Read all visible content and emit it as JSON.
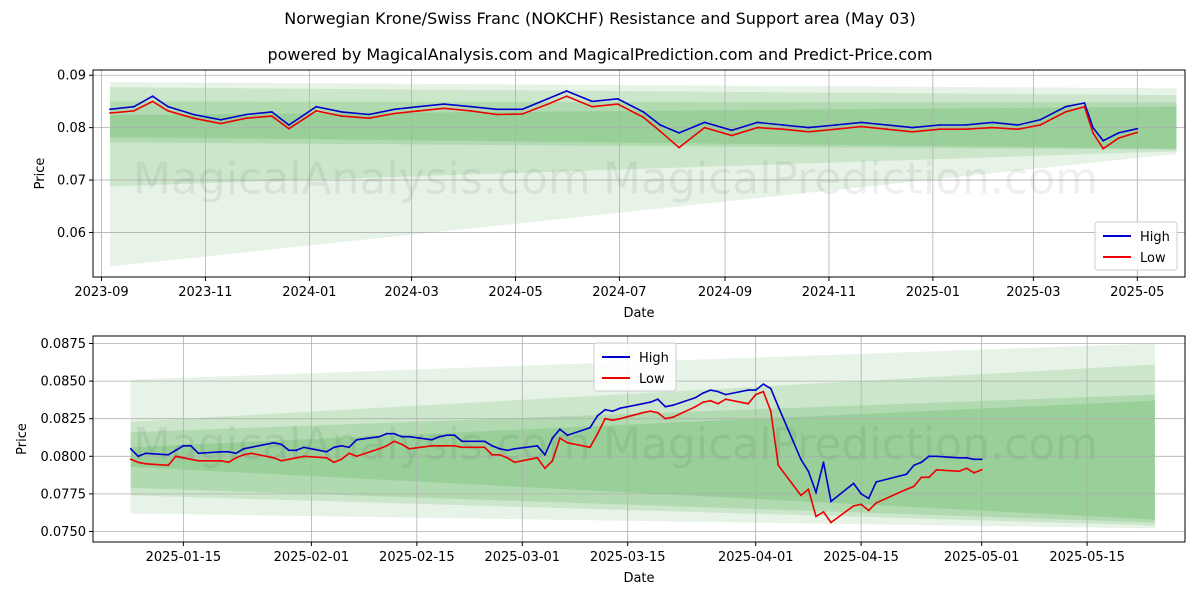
{
  "title": "Norwegian Krone/Swiss Franc (NOKCHF) Resistance and Support area (May 03)",
  "subtitle": "powered by MagicalAnalysis.com and MagicalPrediction.com and Predict-Price.com",
  "watermarks": [
    "MagicalAnalysis.com",
    "MagicalPrediction.com"
  ],
  "colors": {
    "high": "#0000cc",
    "low": "#ee0000",
    "band": "#2e9e2e"
  },
  "chart_data": [
    {
      "type": "line",
      "xlabel": "Date",
      "ylabel": "Price",
      "xlim": [
        "2023-08-27",
        "2025-05-29"
      ],
      "ylim": [
        0.0515,
        0.091
      ],
      "x_ticks": [
        "2023-09",
        "2023-11",
        "2024-01",
        "2024-03",
        "2024-05",
        "2024-07",
        "2024-09",
        "2024-11",
        "2025-01",
        "2025-03",
        "2025-05"
      ],
      "x_tick_dates": [
        "2023-09-01",
        "2023-11-01",
        "2024-01-01",
        "2024-03-01",
        "2024-05-01",
        "2024-07-01",
        "2024-09-01",
        "2024-11-01",
        "2025-01-01",
        "2025-03-01",
        "2025-05-01"
      ],
      "y_ticks": [
        "0.06",
        "0.07",
        "0.08",
        "0.09"
      ],
      "y_tick_values": [
        0.06,
        0.07,
        0.08,
        0.09
      ],
      "legend": {
        "position": "lower-right",
        "entries": [
          "High",
          "Low"
        ]
      },
      "series": [
        {
          "name": "High",
          "x": [
            "2023-09-06",
            "2023-09-20",
            "2023-10-01",
            "2023-10-10",
            "2023-10-25",
            "2023-11-10",
            "2023-11-25",
            "2023-12-10",
            "2023-12-20",
            "2024-01-05",
            "2024-01-20",
            "2024-02-05",
            "2024-02-20",
            "2024-03-05",
            "2024-03-20",
            "2024-04-05",
            "2024-04-20",
            "2024-05-05",
            "2024-05-20",
            "2024-05-31",
            "2024-06-15",
            "2024-06-30",
            "2024-07-15",
            "2024-07-25",
            "2024-08-05",
            "2024-08-20",
            "2024-09-05",
            "2024-09-20",
            "2024-10-05",
            "2024-10-20",
            "2024-11-05",
            "2024-11-20",
            "2024-12-05",
            "2024-12-20",
            "2025-01-05",
            "2025-01-20",
            "2025-02-05",
            "2025-02-20",
            "2025-03-05",
            "2025-03-20",
            "2025-03-31",
            "2025-04-05",
            "2025-04-11",
            "2025-04-20",
            "2025-05-01"
          ],
          "values": [
            0.0835,
            0.084,
            0.086,
            0.084,
            0.0825,
            0.0815,
            0.0825,
            0.083,
            0.0805,
            0.084,
            0.083,
            0.0825,
            0.0835,
            0.084,
            0.0845,
            0.084,
            0.0835,
            0.0835,
            0.0855,
            0.087,
            0.085,
            0.0855,
            0.083,
            0.0805,
            0.079,
            0.081,
            0.0795,
            0.081,
            0.0805,
            0.08,
            0.0805,
            0.081,
            0.0805,
            0.08,
            0.0805,
            0.0805,
            0.081,
            0.0805,
            0.0815,
            0.084,
            0.0847,
            0.08,
            0.0775,
            0.079,
            0.0798
          ]
        },
        {
          "name": "Low",
          "x": [
            "2023-09-06",
            "2023-09-20",
            "2023-10-01",
            "2023-10-10",
            "2023-10-25",
            "2023-11-10",
            "2023-11-25",
            "2023-12-10",
            "2023-12-20",
            "2024-01-05",
            "2024-01-20",
            "2024-02-05",
            "2024-02-20",
            "2024-03-05",
            "2024-03-20",
            "2024-04-05",
            "2024-04-20",
            "2024-05-05",
            "2024-05-20",
            "2024-05-31",
            "2024-06-15",
            "2024-06-30",
            "2024-07-15",
            "2024-07-25",
            "2024-08-05",
            "2024-08-20",
            "2024-09-05",
            "2024-09-20",
            "2024-10-05",
            "2024-10-20",
            "2024-11-05",
            "2024-11-20",
            "2024-12-05",
            "2024-12-20",
            "2025-01-05",
            "2025-01-20",
            "2025-02-05",
            "2025-02-20",
            "2025-03-05",
            "2025-03-20",
            "2025-03-31",
            "2025-04-05",
            "2025-04-11",
            "2025-04-20",
            "2025-05-01"
          ],
          "values": [
            0.0828,
            0.0832,
            0.085,
            0.0832,
            0.0818,
            0.0808,
            0.0818,
            0.0822,
            0.0798,
            0.0832,
            0.0822,
            0.0818,
            0.0827,
            0.0832,
            0.0837,
            0.0832,
            0.0825,
            0.0826,
            0.0845,
            0.086,
            0.084,
            0.0845,
            0.082,
            0.0793,
            0.0762,
            0.08,
            0.0785,
            0.08,
            0.0797,
            0.0792,
            0.0797,
            0.0802,
            0.0797,
            0.0792,
            0.0797,
            0.0797,
            0.08,
            0.0797,
            0.0805,
            0.083,
            0.084,
            0.079,
            0.076,
            0.078,
            0.0791
          ]
        }
      ],
      "bands": [
        {
          "x_start": "2023-09-06",
          "x_end": "2025-05-24",
          "upper_start": 0.0887,
          "upper_end": 0.0875,
          "lower_start": 0.0535,
          "lower_end": 0.075
        },
        {
          "x_start": "2023-09-06",
          "x_end": "2025-05-24",
          "upper_start": 0.0877,
          "upper_end": 0.0862,
          "lower_start": 0.0688,
          "lower_end": 0.0755
        },
        {
          "x_start": "2023-09-06",
          "x_end": "2025-05-24",
          "upper_start": 0.085,
          "upper_end": 0.0848,
          "lower_start": 0.0772,
          "lower_end": 0.0758
        },
        {
          "x_start": "2023-09-06",
          "x_end": "2025-05-24",
          "upper_start": 0.0824,
          "upper_end": 0.084,
          "lower_start": 0.0782,
          "lower_end": 0.076
        }
      ]
    },
    {
      "type": "line",
      "xlabel": "Date",
      "ylabel": "Price",
      "xlim": [
        "2025-01-03",
        "2025-05-28"
      ],
      "ylim": [
        0.0743,
        0.088
      ],
      "x_ticks": [
        "2025-01-15",
        "2025-02-01",
        "2025-02-15",
        "2025-03-01",
        "2025-03-15",
        "2025-04-01",
        "2025-04-15",
        "2025-05-01",
        "2025-05-15"
      ],
      "x_tick_dates": [
        "2025-01-15",
        "2025-02-01",
        "2025-02-15",
        "2025-03-01",
        "2025-03-15",
        "2025-04-01",
        "2025-04-15",
        "2025-05-01",
        "2025-05-15"
      ],
      "y_ticks": [
        "0.0750",
        "0.0775",
        "0.0800",
        "0.0825",
        "0.0850",
        "0.0875"
      ],
      "y_tick_values": [
        0.075,
        0.0775,
        0.08,
        0.0825,
        0.085,
        0.0875
      ],
      "legend": {
        "position": "top-center",
        "entries": [
          "High",
          "Low"
        ]
      },
      "series": [
        {
          "name": "High",
          "x": [
            "2025-01-08",
            "2025-01-09",
            "2025-01-10",
            "2025-01-13",
            "2025-01-14",
            "2025-01-15",
            "2025-01-16",
            "2025-01-17",
            "2025-01-20",
            "2025-01-21",
            "2025-01-22",
            "2025-01-23",
            "2025-01-24",
            "2025-01-27",
            "2025-01-28",
            "2025-01-29",
            "2025-01-30",
            "2025-01-31",
            "2025-02-03",
            "2025-02-04",
            "2025-02-05",
            "2025-02-06",
            "2025-02-07",
            "2025-02-10",
            "2025-02-11",
            "2025-02-12",
            "2025-02-13",
            "2025-02-14",
            "2025-02-17",
            "2025-02-18",
            "2025-02-19",
            "2025-02-20",
            "2025-02-21",
            "2025-02-24",
            "2025-02-25",
            "2025-02-26",
            "2025-02-27",
            "2025-02-28",
            "2025-03-03",
            "2025-03-04",
            "2025-03-05",
            "2025-03-06",
            "2025-03-07",
            "2025-03-10",
            "2025-03-11",
            "2025-03-12",
            "2025-03-13",
            "2025-03-14",
            "2025-03-17",
            "2025-03-18",
            "2025-03-19",
            "2025-03-20",
            "2025-03-21",
            "2025-03-24",
            "2025-03-25",
            "2025-03-26",
            "2025-03-27",
            "2025-03-28",
            "2025-03-31",
            "2025-04-01",
            "2025-04-02",
            "2025-04-03",
            "2025-04-04",
            "2025-04-07",
            "2025-04-08",
            "2025-04-09",
            "2025-04-10",
            "2025-04-11",
            "2025-04-14",
            "2025-04-15",
            "2025-04-16",
            "2025-04-17",
            "2025-04-21",
            "2025-04-22",
            "2025-04-23",
            "2025-04-24",
            "2025-04-25",
            "2025-04-28",
            "2025-04-29",
            "2025-04-30",
            "2025-05-01"
          ],
          "values": [
            0.0805,
            0.08,
            0.0802,
            0.0801,
            0.0804,
            0.0807,
            0.0807,
            0.0802,
            0.0803,
            0.0803,
            0.0802,
            0.0805,
            0.0806,
            0.0809,
            0.0808,
            0.0804,
            0.0804,
            0.0806,
            0.0803,
            0.0806,
            0.0807,
            0.0806,
            0.0811,
            0.0813,
            0.0815,
            0.0815,
            0.0813,
            0.0813,
            0.0811,
            0.0813,
            0.0814,
            0.0814,
            0.081,
            0.081,
            0.0807,
            0.0805,
            0.0804,
            0.0805,
            0.0807,
            0.0801,
            0.0812,
            0.0818,
            0.0814,
            0.0819,
            0.0827,
            0.0831,
            0.083,
            0.0832,
            0.0835,
            0.0836,
            0.0838,
            0.0833,
            0.0834,
            0.0839,
            0.0842,
            0.0844,
            0.0843,
            0.0841,
            0.0844,
            0.0844,
            0.0848,
            0.0845,
            0.0833,
            0.0798,
            0.079,
            0.0776,
            0.0796,
            0.077,
            0.0782,
            0.0775,
            0.0772,
            0.0783,
            0.0788,
            0.0794,
            0.0796,
            0.08,
            0.08,
            0.0799,
            0.0799,
            0.0798,
            0.0798
          ]
        },
        {
          "name": "Low",
          "x": [
            "2025-01-08",
            "2025-01-09",
            "2025-01-10",
            "2025-01-13",
            "2025-01-14",
            "2025-01-15",
            "2025-01-16",
            "2025-01-17",
            "2025-01-20",
            "2025-01-21",
            "2025-01-22",
            "2025-01-23",
            "2025-01-24",
            "2025-01-27",
            "2025-01-28",
            "2025-01-29",
            "2025-01-30",
            "2025-01-31",
            "2025-02-03",
            "2025-02-04",
            "2025-02-05",
            "2025-02-06",
            "2025-02-07",
            "2025-02-10",
            "2025-02-11",
            "2025-02-12",
            "2025-02-13",
            "2025-02-14",
            "2025-02-17",
            "2025-02-18",
            "2025-02-19",
            "2025-02-20",
            "2025-02-21",
            "2025-02-24",
            "2025-02-25",
            "2025-02-26",
            "2025-02-27",
            "2025-02-28",
            "2025-03-03",
            "2025-03-04",
            "2025-03-05",
            "2025-03-06",
            "2025-03-07",
            "2025-03-10",
            "2025-03-11",
            "2025-03-12",
            "2025-03-13",
            "2025-03-14",
            "2025-03-17",
            "2025-03-18",
            "2025-03-19",
            "2025-03-20",
            "2025-03-21",
            "2025-03-24",
            "2025-03-25",
            "2025-03-26",
            "2025-03-27",
            "2025-03-28",
            "2025-03-31",
            "2025-04-01",
            "2025-04-02",
            "2025-04-03",
            "2025-04-04",
            "2025-04-07",
            "2025-04-08",
            "2025-04-09",
            "2025-04-10",
            "2025-04-11",
            "2025-04-14",
            "2025-04-15",
            "2025-04-16",
            "2025-04-17",
            "2025-04-21",
            "2025-04-22",
            "2025-04-23",
            "2025-04-24",
            "2025-04-25",
            "2025-04-28",
            "2025-04-29",
            "2025-04-30",
            "2025-05-01"
          ],
          "values": [
            0.0798,
            0.0796,
            0.0795,
            0.0794,
            0.08,
            0.0799,
            0.0798,
            0.0797,
            0.0797,
            0.0796,
            0.0799,
            0.0801,
            0.0802,
            0.0799,
            0.0797,
            0.0798,
            0.0799,
            0.08,
            0.0799,
            0.0796,
            0.0798,
            0.0802,
            0.08,
            0.0805,
            0.0807,
            0.081,
            0.0808,
            0.0805,
            0.0807,
            0.0807,
            0.0807,
            0.0807,
            0.0806,
            0.0806,
            0.0801,
            0.0801,
            0.0799,
            0.0796,
            0.0799,
            0.0792,
            0.0797,
            0.0812,
            0.0809,
            0.0806,
            0.0815,
            0.0825,
            0.0824,
            0.0825,
            0.0829,
            0.083,
            0.0829,
            0.0825,
            0.0826,
            0.0833,
            0.0836,
            0.0837,
            0.0835,
            0.0838,
            0.0835,
            0.0841,
            0.0843,
            0.083,
            0.0794,
            0.0774,
            0.0778,
            0.076,
            0.0763,
            0.0756,
            0.0767,
            0.0768,
            0.0764,
            0.0769,
            0.0778,
            0.078,
            0.0786,
            0.0786,
            0.0791,
            0.079,
            0.0792,
            0.0789,
            0.0791
          ]
        }
      ],
      "bands": [
        {
          "x_start": "2025-01-08",
          "x_end": "2025-05-24",
          "upper_start": 0.0851,
          "upper_end": 0.0875,
          "lower_start": 0.0762,
          "lower_end": 0.0752
        },
        {
          "x_start": "2025-01-08",
          "x_end": "2025-05-24",
          "upper_start": 0.0823,
          "upper_end": 0.0861,
          "lower_start": 0.0774,
          "lower_end": 0.0754
        },
        {
          "x_start": "2025-01-08",
          "x_end": "2025-05-24",
          "upper_start": 0.0816,
          "upper_end": 0.0841,
          "lower_start": 0.0779,
          "lower_end": 0.0756
        },
        {
          "x_start": "2025-01-08",
          "x_end": "2025-05-24",
          "upper_start": 0.0806,
          "upper_end": 0.0837,
          "lower_start": 0.0793,
          "lower_end": 0.0758
        }
      ]
    }
  ]
}
